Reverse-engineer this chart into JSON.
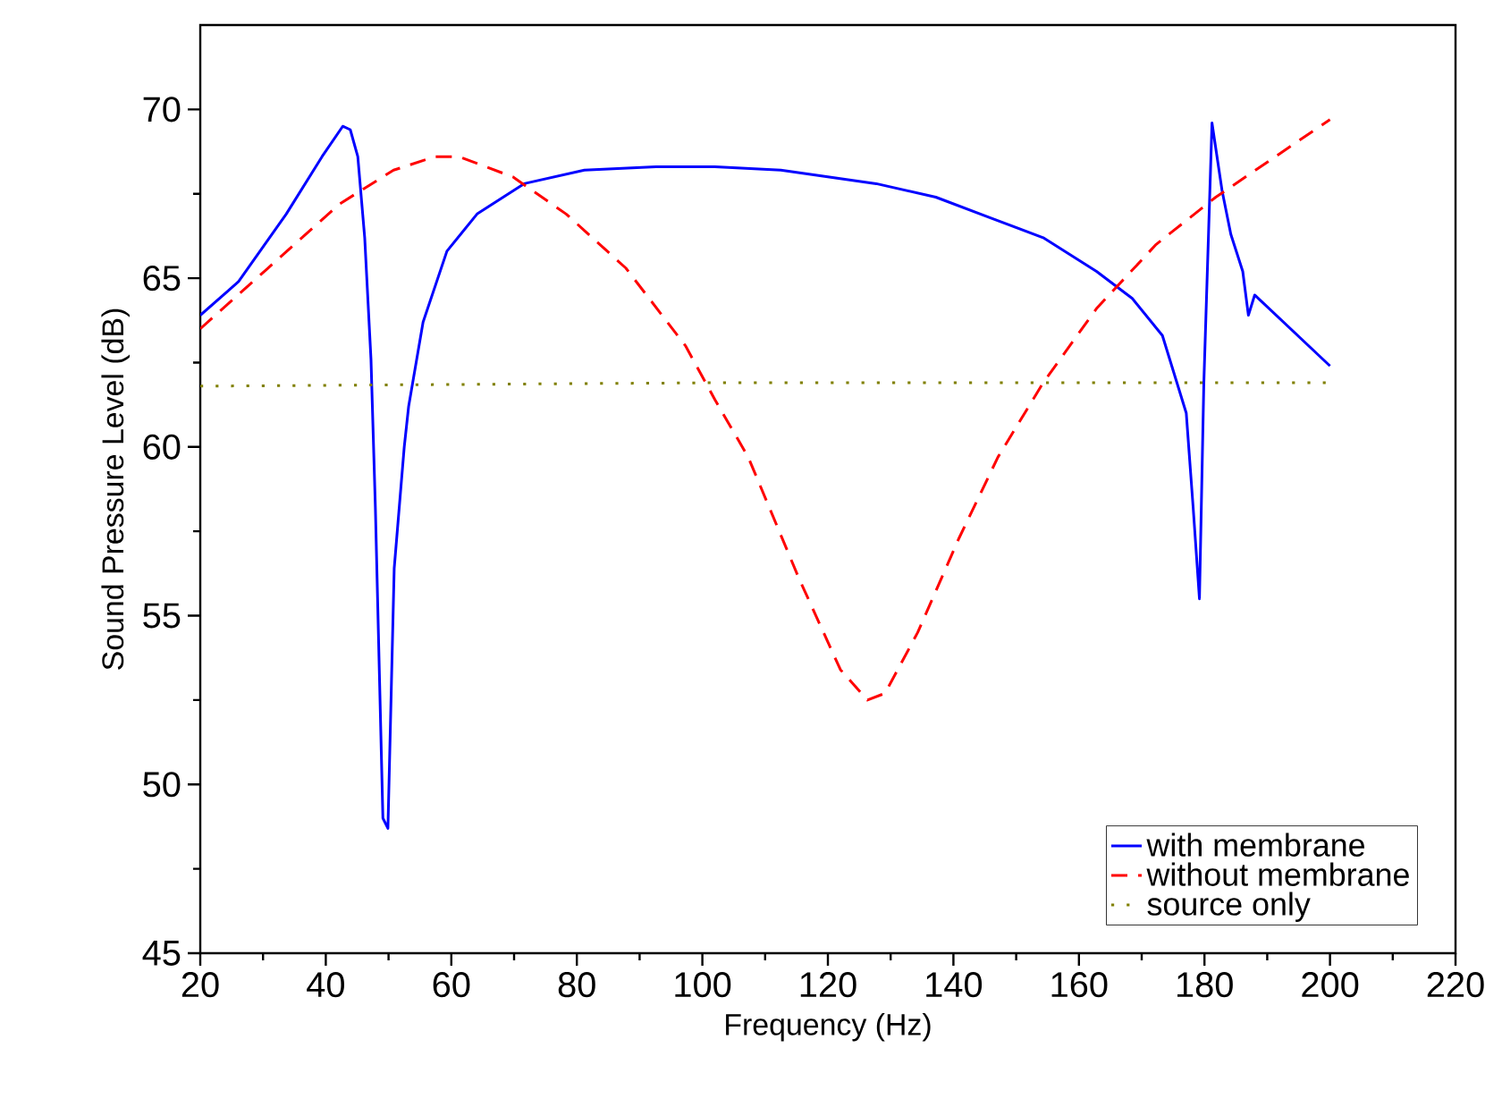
{
  "chart_data": {
    "type": "line",
    "xlabel": "Frequency (Hz)",
    "ylabel": "Sound Pressure Level (dB)",
    "xlim": [
      20,
      220
    ],
    "xticks": [
      20,
      40,
      60,
      80,
      100,
      120,
      140,
      160,
      180,
      200,
      220
    ],
    "ylim": [
      45,
      72.5
    ],
    "yticks": [
      45,
      50,
      55,
      60,
      65,
      70
    ],
    "legend": "bottom right",
    "grid": false,
    "marker": "none",
    "series": [
      {
        "name": "with membrane",
        "color": "#0000ff",
        "line_style": "solid",
        "x": [
          20,
          26.1,
          33.7,
          39.4,
          42.7,
          43.9,
          45.1,
          46.2,
          47.2,
          47.9,
          49.1,
          49.9,
          50.9,
          52.5,
          53.2,
          55.5,
          59.3,
          64.1,
          71.6,
          81.2,
          92.6,
          102,
          112.5,
          127.7,
          137.2,
          145.7,
          154.3,
          162.8,
          168.5,
          173.3,
          177.1,
          178.2,
          179.2,
          179.9,
          181.2,
          182.8,
          184.2,
          186.1,
          187.0,
          188.0,
          200
        ],
        "values": [
          63.9,
          64.9,
          66.9,
          68.6,
          69.5,
          69.4,
          68.6,
          66.2,
          62.6,
          58.2,
          49.0,
          48.7,
          56.4,
          60.0,
          61.2,
          63.7,
          65.8,
          66.9,
          67.8,
          68.2,
          68.3,
          68.3,
          68.2,
          67.8,
          67.4,
          66.8,
          66.2,
          65.2,
          64.4,
          63.3,
          61.0,
          58.2,
          55.5,
          61.9,
          69.6,
          67.6,
          66.3,
          65.2,
          63.9,
          64.5,
          62.4
        ]
      },
      {
        "name": "without membrane",
        "color": "#ff0000",
        "line_style": "dashed",
        "x": [
          20,
          30.8,
          42.2,
          50.8,
          57.4,
          61.2,
          69.8,
          78.3,
          87.8,
          97.3,
          102,
          107.3,
          115.4,
          122,
          126.3,
          129.1,
          134.3,
          140.9,
          147.1,
          154.3,
          162.8,
          172.3,
          181.8,
          191.3,
          200
        ],
        "values": [
          63.5,
          65.3,
          67.2,
          68.2,
          68.6,
          68.6,
          68.0,
          66.9,
          65.3,
          63.0,
          61.4,
          59.7,
          56.1,
          53.4,
          52.5,
          52.7,
          54.5,
          57.3,
          59.7,
          61.9,
          64.1,
          66.0,
          67.4,
          68.6,
          69.7
        ]
      },
      {
        "name": "source only",
        "color": "#808000",
        "line_style": "dotted",
        "x": [
          20,
          100,
          200
        ],
        "values": [
          61.8,
          61.9,
          61.9
        ]
      }
    ]
  }
}
